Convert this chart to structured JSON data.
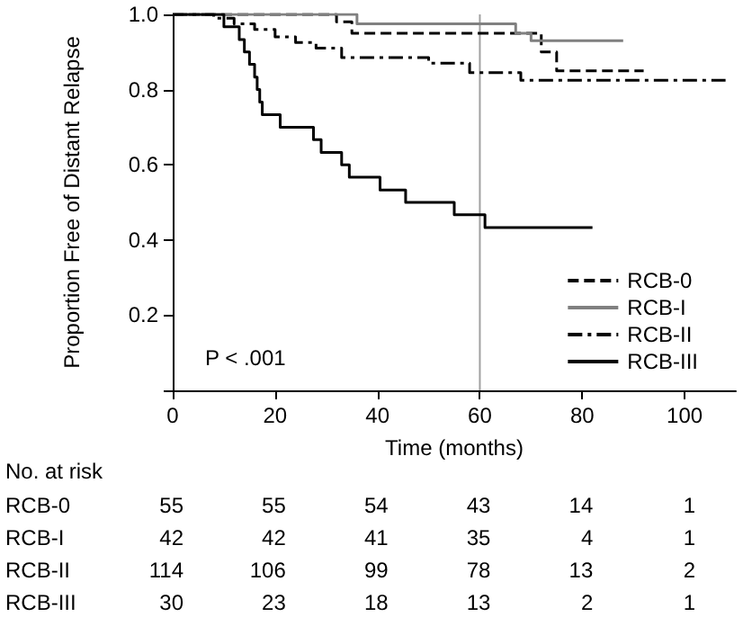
{
  "chart_data": {
    "type": "step",
    "xlabel": "Time (months)",
    "ylabel": "Proportion Free of Distant Relapse",
    "xlim": [
      0,
      110
    ],
    "xticks": [
      0,
      20,
      40,
      60,
      80,
      100
    ],
    "ylim": [
      0,
      1.0
    ],
    "yticks": [
      {
        "value": 0,
        "label": null
      },
      0.2,
      0.4,
      0.6,
      0.8,
      {
        "value": 1.0,
        "label": "1.0"
      }
    ],
    "grid": false,
    "legend": "bottom right",
    "marker": "none",
    "series": [
      {
        "name": "RCB-0",
        "color": "#000000",
        "line_style": "dashed",
        "x": [
          0,
          32,
          35,
          72,
          75,
          92
        ],
        "values": [
          1.0,
          0.98,
          0.95,
          0.9,
          0.85,
          0.85
        ]
      },
      {
        "name": "RCB-I",
        "color": "#808080",
        "line_style": "solid",
        "x": [
          0,
          36,
          67,
          70,
          88
        ],
        "values": [
          1.0,
          0.975,
          0.95,
          0.93,
          0.93
        ]
      },
      {
        "name": "RCB-II",
        "color": "#000000",
        "line_style": "dashdot",
        "x": [
          0,
          8,
          12,
          16,
          20,
          24,
          28,
          33,
          50,
          58,
          68,
          108
        ],
        "values": [
          1.0,
          0.99,
          0.975,
          0.96,
          0.94,
          0.925,
          0.91,
          0.885,
          0.87,
          0.845,
          0.825,
          0.825
        ]
      },
      {
        "name": "RCB-III",
        "color": "#000000",
        "line_style": "solid",
        "x": [
          0,
          10,
          13,
          14,
          15,
          16,
          16.5,
          17,
          17.5,
          21,
          27.5,
          29,
          33,
          34.5,
          40.5,
          45.5,
          55,
          61,
          82
        ],
        "values": [
          1.0,
          0.967,
          0.933,
          0.9,
          0.867,
          0.833,
          0.8,
          0.767,
          0.733,
          0.7,
          0.667,
          0.633,
          0.6,
          0.567,
          0.533,
          0.5,
          0.467,
          0.433,
          0.433
        ]
      }
    ],
    "ref_lines": [
      {
        "axis": "x",
        "value": 60,
        "color": "#a0a0a0"
      }
    ],
    "annotations": [
      "P < .001",
      "No. at risk",
      "RCB-0 55 55 54 43 14 1",
      "RCB-I 42 42 41 35 4 1",
      "RCB-II 114 106 99 78 13 2",
      "RCB-III 30 23 18 13 2 1"
    ]
  }
}
